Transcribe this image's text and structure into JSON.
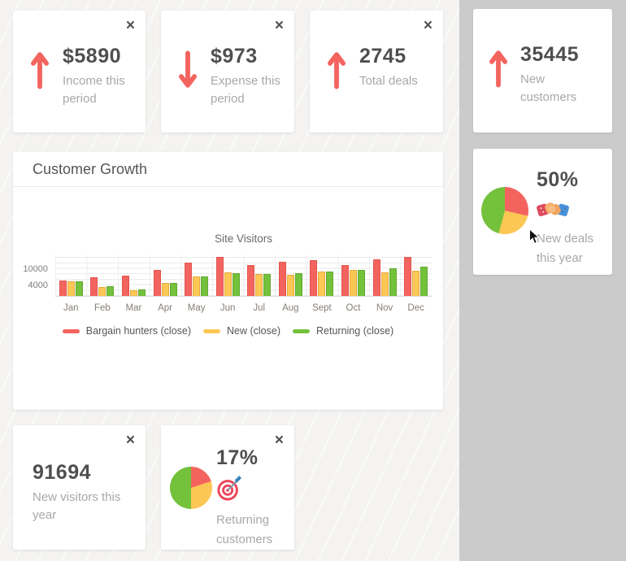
{
  "ui": {
    "close_glyph": "×"
  },
  "colors": {
    "accent_red": "#f4645f",
    "accent_yellow": "#fcc755",
    "accent_green": "#74c13c",
    "main_bg": "#f4f3f2",
    "sidebar_bg": "#cbcbcb",
    "card_bg": "#ffffff",
    "value_text": "#4f4f4f",
    "label_text": "#a8a8a8"
  },
  "topCards": [
    {
      "value": "$5890",
      "label": "Income this period",
      "trend": "up"
    },
    {
      "value": "$973",
      "label": "Expense this period",
      "trend": "down"
    },
    {
      "value": "2745",
      "label": "Total deals",
      "trend": "up"
    }
  ],
  "sidebarCards": {
    "newCustomers": {
      "value": "35445",
      "label": "New customers",
      "trend": "up"
    },
    "newDeals": {
      "value": "50%",
      "label": "New deals this year",
      "icon": "handshake-emoji",
      "pie": [
        {
          "name": "red",
          "color": "#f4645f",
          "from": 0,
          "to": 103
        },
        {
          "name": "yellow",
          "color": "#fcc755",
          "from": 103,
          "to": 195
        },
        {
          "name": "green",
          "color": "#74c13c",
          "from": 195,
          "to": 360
        }
      ]
    }
  },
  "bottomCards": {
    "newVisitors": {
      "value": "91694",
      "label": "New visitors this year"
    },
    "returningCustomers": {
      "value": "17%",
      "label": "Returning customers",
      "icon": "dart-target-emoji",
      "pie": [
        {
          "name": "red",
          "color": "#f4645f",
          "from": 0,
          "to": 72
        },
        {
          "name": "yellow",
          "color": "#fcc755",
          "from": 72,
          "to": 180
        },
        {
          "name": "green",
          "color": "#74c13c",
          "from": 180,
          "to": 360
        }
      ]
    }
  },
  "growthPanel": {
    "title": "Customer Growth"
  },
  "chart_data": {
    "type": "bar",
    "title": "Site Visitors",
    "categories": [
      "Jan",
      "Feb",
      "Mar",
      "Apr",
      "May",
      "Jun",
      "Jul",
      "Aug",
      "Sept",
      "Oct",
      "Nov",
      "Dec"
    ],
    "series": [
      {
        "name": "Bargain hunters (close)",
        "color": "#f4645f",
        "border": "#e1544f",
        "values": [
          5600,
          6900,
          7600,
          9600,
          12400,
          14300,
          11500,
          12600,
          13100,
          11400,
          13400,
          14500
        ]
      },
      {
        "name": "New (close)",
        "color": "#fcc755",
        "border": "#e6a93e",
        "values": [
          5300,
          3400,
          2200,
          4700,
          7100,
          8600,
          8100,
          7700,
          8900,
          9700,
          8800,
          9400
        ]
      },
      {
        "name": "Returning (close)",
        "color": "#74c13c",
        "border": "#63a830",
        "values": [
          5400,
          3500,
          2300,
          4800,
          7200,
          8500,
          8200,
          8300,
          8900,
          9700,
          10200,
          10700
        ]
      }
    ],
    "yticks": [
      4000,
      10000
    ],
    "ylim": [
      0,
      15300
    ],
    "grid": true,
    "legend_position": "bottom"
  }
}
